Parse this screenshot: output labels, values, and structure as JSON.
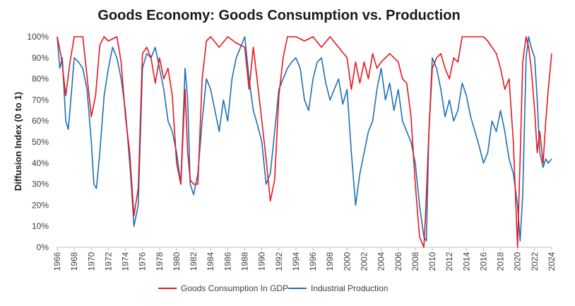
{
  "chart_data": {
    "type": "line",
    "title": "Goods Economy: Goods Consumption vs. Production",
    "ylabel": "Diffusion Index (0 to 1)",
    "xlabel": "",
    "xlim": [
      1966,
      2024
    ],
    "ylim": [
      0,
      1
    ],
    "yticks": [
      "0%",
      "10%",
      "20%",
      "30%",
      "40%",
      "50%",
      "60%",
      "70%",
      "80%",
      "90%",
      "100%"
    ],
    "xticks": [
      "1966",
      "1968",
      "1970",
      "1972",
      "1974",
      "1976",
      "1978",
      "1980",
      "1982",
      "1984",
      "1986",
      "1988",
      "1990",
      "1992",
      "1994",
      "1996",
      "1998",
      "2000",
      "2002",
      "2004",
      "2006",
      "2008",
      "2010",
      "2012",
      "2014",
      "2016",
      "2018",
      "2020",
      "2022",
      "2024"
    ],
    "grid": false,
    "legend": "bottom-center",
    "colors": {
      "consumption": "#e8161e",
      "production": "#1f6fb5"
    },
    "series": [
      {
        "name": "Goods Consumption In GDP",
        "x": [
          1966.0,
          1966.5,
          1967.0,
          1967.5,
          1968.0,
          1969.0,
          1970.0,
          1970.5,
          1971.0,
          1971.5,
          1972.0,
          1973.0,
          1973.5,
          1974.0,
          1974.5,
          1975.0,
          1975.5,
          1976.0,
          1976.5,
          1977.0,
          1977.5,
          1978.0,
          1978.5,
          1979.0,
          1979.5,
          1980.0,
          1980.5,
          1981.0,
          1981.3,
          1981.6,
          1982.0,
          1982.5,
          1983.0,
          1983.5,
          1984.0,
          1985.0,
          1986.0,
          1987.0,
          1988.0,
          1988.5,
          1989.0,
          1989.5,
          1990.0,
          1990.5,
          1991.0,
          1991.5,
          1992.0,
          1992.5,
          1993.0,
          1994.0,
          1995.0,
          1996.0,
          1997.0,
          1998.0,
          1999.0,
          2000.0,
          2000.5,
          2001.0,
          2001.5,
          2002.0,
          2002.5,
          2003.0,
          2003.5,
          2004.0,
          2005.0,
          2006.0,
          2006.5,
          2007.0,
          2007.5,
          2008.0,
          2008.5,
          2009.0,
          2009.2,
          2009.6,
          2010.0,
          2010.5,
          2011.0,
          2011.5,
          2012.0,
          2012.5,
          2013.0,
          2013.5,
          2014.0,
          2015.0,
          2016.0,
          2016.5,
          2017.0,
          2017.5,
          2018.0,
          2018.5,
          2019.0,
          2019.5,
          2020.0,
          2020.3,
          2020.6,
          2021.0,
          2021.3,
          2021.6,
          2022.0,
          2022.3,
          2022.6,
          2023.0,
          2023.3,
          2023.6,
          2024.0
        ],
        "values": [
          1.0,
          0.9,
          0.72,
          0.88,
          1.0,
          1.0,
          0.62,
          0.72,
          0.96,
          1.0,
          0.98,
          1.0,
          0.88,
          0.62,
          0.45,
          0.15,
          0.28,
          0.92,
          0.95,
          0.9,
          0.78,
          0.9,
          0.8,
          0.85,
          0.72,
          0.4,
          0.3,
          0.75,
          0.45,
          0.32,
          0.3,
          0.3,
          0.8,
          0.98,
          1.0,
          0.95,
          1.0,
          0.97,
          0.95,
          0.75,
          0.95,
          0.78,
          0.6,
          0.42,
          0.22,
          0.32,
          0.72,
          0.9,
          1.0,
          1.0,
          0.98,
          1.0,
          0.95,
          1.0,
          0.95,
          0.9,
          0.75,
          0.88,
          0.78,
          0.88,
          0.8,
          0.92,
          0.85,
          0.88,
          0.92,
          0.88,
          0.8,
          0.78,
          0.62,
          0.3,
          0.05,
          0.0,
          0.15,
          0.55,
          0.85,
          0.9,
          0.92,
          0.85,
          0.8,
          0.9,
          0.88,
          1.0,
          1.0,
          1.0,
          1.0,
          0.98,
          0.95,
          0.92,
          0.85,
          0.75,
          0.8,
          0.5,
          0.0,
          0.42,
          0.88,
          1.0,
          0.95,
          0.85,
          0.65,
          0.45,
          0.55,
          0.4,
          0.6,
          0.75,
          0.92
        ]
      },
      {
        "name": "Industrial Production",
        "x": [
          1966.0,
          1966.3,
          1966.6,
          1967.0,
          1967.3,
          1967.7,
          1968.0,
          1968.5,
          1969.0,
          1969.5,
          1970.0,
          1970.3,
          1970.6,
          1971.0,
          1971.5,
          1972.0,
          1972.5,
          1973.0,
          1973.5,
          1974.0,
          1974.3,
          1974.6,
          1975.0,
          1975.5,
          1976.0,
          1976.5,
          1977.0,
          1977.5,
          1978.0,
          1978.5,
          1979.0,
          1979.5,
          1980.0,
          1980.5,
          1981.0,
          1981.3,
          1981.6,
          1982.0,
          1982.5,
          1983.0,
          1983.5,
          1984.0,
          1984.5,
          1985.0,
          1985.5,
          1986.0,
          1986.5,
          1987.0,
          1987.5,
          1988.0,
          1988.5,
          1989.0,
          1989.5,
          1990.0,
          1990.5,
          1991.0,
          1991.5,
          1992.0,
          1992.5,
          1993.0,
          1993.5,
          1994.0,
          1994.5,
          1995.0,
          1995.5,
          1996.0,
          1996.5,
          1997.0,
          1997.5,
          1998.0,
          1998.5,
          1999.0,
          1999.5,
          2000.0,
          2000.5,
          2001.0,
          2001.5,
          2002.0,
          2002.5,
          2003.0,
          2003.5,
          2004.0,
          2004.5,
          2005.0,
          2005.5,
          2006.0,
          2006.5,
          2007.0,
          2007.5,
          2008.0,
          2008.5,
          2009.0,
          2009.3,
          2009.6,
          2010.0,
          2010.5,
          2011.0,
          2011.5,
          2012.0,
          2012.5,
          2013.0,
          2013.5,
          2014.0,
          2014.5,
          2015.0,
          2015.5,
          2016.0,
          2016.5,
          2017.0,
          2017.5,
          2018.0,
          2018.5,
          2019.0,
          2019.5,
          2020.0,
          2020.3,
          2020.6,
          2021.0,
          2021.3,
          2021.6,
          2022.0,
          2022.3,
          2022.6,
          2023.0,
          2023.3,
          2023.6,
          2024.0
        ],
        "values": [
          1.0,
          0.85,
          0.9,
          0.6,
          0.56,
          0.75,
          0.9,
          0.88,
          0.85,
          0.75,
          0.5,
          0.3,
          0.28,
          0.45,
          0.72,
          0.85,
          0.95,
          0.9,
          0.8,
          0.65,
          0.5,
          0.35,
          0.1,
          0.2,
          0.85,
          0.92,
          0.9,
          0.95,
          0.85,
          0.75,
          0.6,
          0.55,
          0.45,
          0.3,
          0.85,
          0.7,
          0.3,
          0.25,
          0.35,
          0.6,
          0.8,
          0.75,
          0.65,
          0.55,
          0.7,
          0.6,
          0.8,
          0.9,
          0.95,
          1.0,
          0.8,
          0.65,
          0.58,
          0.5,
          0.3,
          0.35,
          0.55,
          0.75,
          0.8,
          0.85,
          0.88,
          0.9,
          0.85,
          0.7,
          0.65,
          0.8,
          0.88,
          0.9,
          0.78,
          0.7,
          0.75,
          0.8,
          0.68,
          0.75,
          0.45,
          0.2,
          0.35,
          0.45,
          0.55,
          0.6,
          0.75,
          0.85,
          0.7,
          0.78,
          0.65,
          0.75,
          0.6,
          0.55,
          0.5,
          0.4,
          0.2,
          0.05,
          0.03,
          0.55,
          0.9,
          0.85,
          0.75,
          0.62,
          0.7,
          0.6,
          0.65,
          0.78,
          0.72,
          0.62,
          0.55,
          0.48,
          0.4,
          0.45,
          0.6,
          0.55,
          0.65,
          0.55,
          0.42,
          0.35,
          0.2,
          0.03,
          0.25,
          0.9,
          1.0,
          0.95,
          0.9,
          0.7,
          0.45,
          0.38,
          0.42,
          0.4,
          0.42
        ]
      }
    ]
  }
}
